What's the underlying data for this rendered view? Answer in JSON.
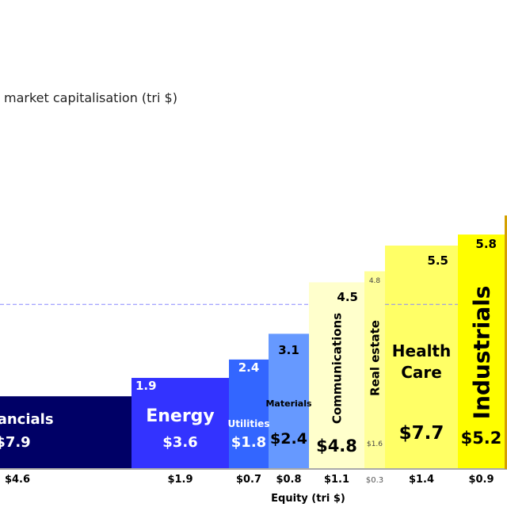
{
  "chart_data": {
    "type": "bar",
    "variant": "variable-width (marimekko)",
    "title": "market capitalisation (tri $)",
    "xlabel": "Equity (tri $)",
    "reference_line_value": 3.9,
    "categories": [
      "Financials",
      "Energy",
      "Utilities",
      "Materials",
      "Communications",
      "Real estate",
      "Health Care",
      "Industrials"
    ],
    "bars": [
      {
        "name": "Financials",
        "height_value": 1.4,
        "height_label": "",
        "market_cap": "$7.9",
        "equity": 4.6,
        "equity_label": "$4.6",
        "color": "#000066",
        "text_color": "#ffffff"
      },
      {
        "name": "Energy",
        "height_value": 1.9,
        "height_label": "1.9",
        "market_cap": "$3.6",
        "equity": 1.9,
        "equity_label": "$1.9",
        "color": "#3333ff",
        "text_color": "#ffffff"
      },
      {
        "name": "Utilities",
        "height_value": 2.4,
        "height_label": "2.4",
        "market_cap": "$1.8",
        "equity": 0.7,
        "equity_label": "$0.7",
        "color": "#3366ff",
        "text_color": "#ffffff"
      },
      {
        "name": "Materials",
        "height_value": 3.1,
        "height_label": "3.1",
        "market_cap": "$2.4",
        "equity": 0.8,
        "equity_label": "$0.8",
        "color": "#6699ff",
        "text_color": "#000000"
      },
      {
        "name": "Communications",
        "height_value": 4.5,
        "height_label": "4.5",
        "market_cap": "$4.8",
        "equity": 1.1,
        "equity_label": "$1.1",
        "color": "#ffffcc",
        "text_color": "#000000"
      },
      {
        "name": "Real estate",
        "height_value": 4.8,
        "height_label": "4.8",
        "market_cap": "$1.6",
        "equity": 0.3,
        "equity_label": "$0.3",
        "color": "#ffff99",
        "text_color": "#000000"
      },
      {
        "name": "Health Care",
        "height_value": 5.5,
        "height_label": "5.5",
        "market_cap": "$7.7",
        "equity": 1.4,
        "equity_label": "$1.4",
        "color": "#ffff66",
        "text_color": "#000000"
      },
      {
        "name": "Industrials",
        "height_value": 5.8,
        "height_label": "5.8",
        "market_cap": "$5.2",
        "equity": 0.9,
        "equity_label": "$0.9",
        "color": "#ffff00",
        "text_color": "#000000"
      }
    ],
    "colors": {
      "reference_line": "#8888ff",
      "axis": "#aaaaaa",
      "edge": "#d4a000"
    }
  }
}
